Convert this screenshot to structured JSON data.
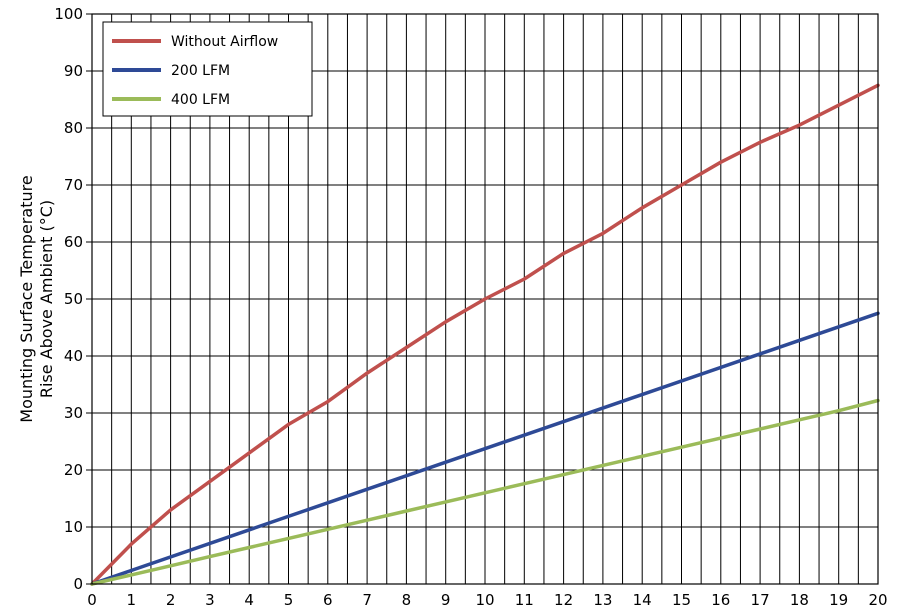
{
  "chart_data": {
    "type": "line",
    "ylabel_line1": "Mounting Surface Temperature",
    "ylabel_line2": "Rise Above  Ambient (°C)",
    "xlim": [
      0,
      20
    ],
    "ylim": [
      0,
      100
    ],
    "xticks": [
      0,
      1,
      2,
      3,
      4,
      5,
      6,
      7,
      8,
      9,
      10,
      11,
      12,
      13,
      14,
      15,
      16,
      17,
      18,
      19,
      20
    ],
    "yticks": [
      0,
      10,
      20,
      30,
      40,
      50,
      60,
      70,
      80,
      90,
      100
    ],
    "vertical_grid_step": 0.5,
    "horizontal_grid_step": 10,
    "grid": true,
    "legend_position": "top-left",
    "series": [
      {
        "name": "Without Airflow",
        "color": "#c0504d",
        "x": [
          0,
          1,
          2,
          3,
          4,
          5,
          6,
          7,
          8,
          9,
          10,
          11,
          12,
          13,
          14,
          15,
          16,
          17,
          18,
          19,
          20
        ],
        "y": [
          0,
          7,
          13,
          18,
          23,
          28,
          32,
          37,
          41.5,
          46,
          50,
          53.5,
          58,
          61.5,
          66,
          70,
          74,
          77.5,
          80.5,
          84,
          87.5
        ]
      },
      {
        "name": "200 LFM",
        "color": "#2e4a96",
        "x": [
          0,
          20
        ],
        "y": [
          0,
          47.5
        ]
      },
      {
        "name": "400 LFM",
        "color": "#9bbb59",
        "x": [
          0,
          1,
          2,
          3,
          4,
          5,
          6,
          7,
          8,
          9,
          10,
          11,
          12,
          13,
          14,
          15,
          16,
          17,
          18,
          19,
          20
        ],
        "y": [
          0,
          1.6,
          3.2,
          4.8,
          6.4,
          8,
          9.6,
          11.2,
          12.8,
          14.4,
          16,
          17.6,
          19.2,
          20.8,
          22.4,
          24,
          25.6,
          27.2,
          28.8,
          30.4,
          32.2
        ]
      }
    ]
  }
}
